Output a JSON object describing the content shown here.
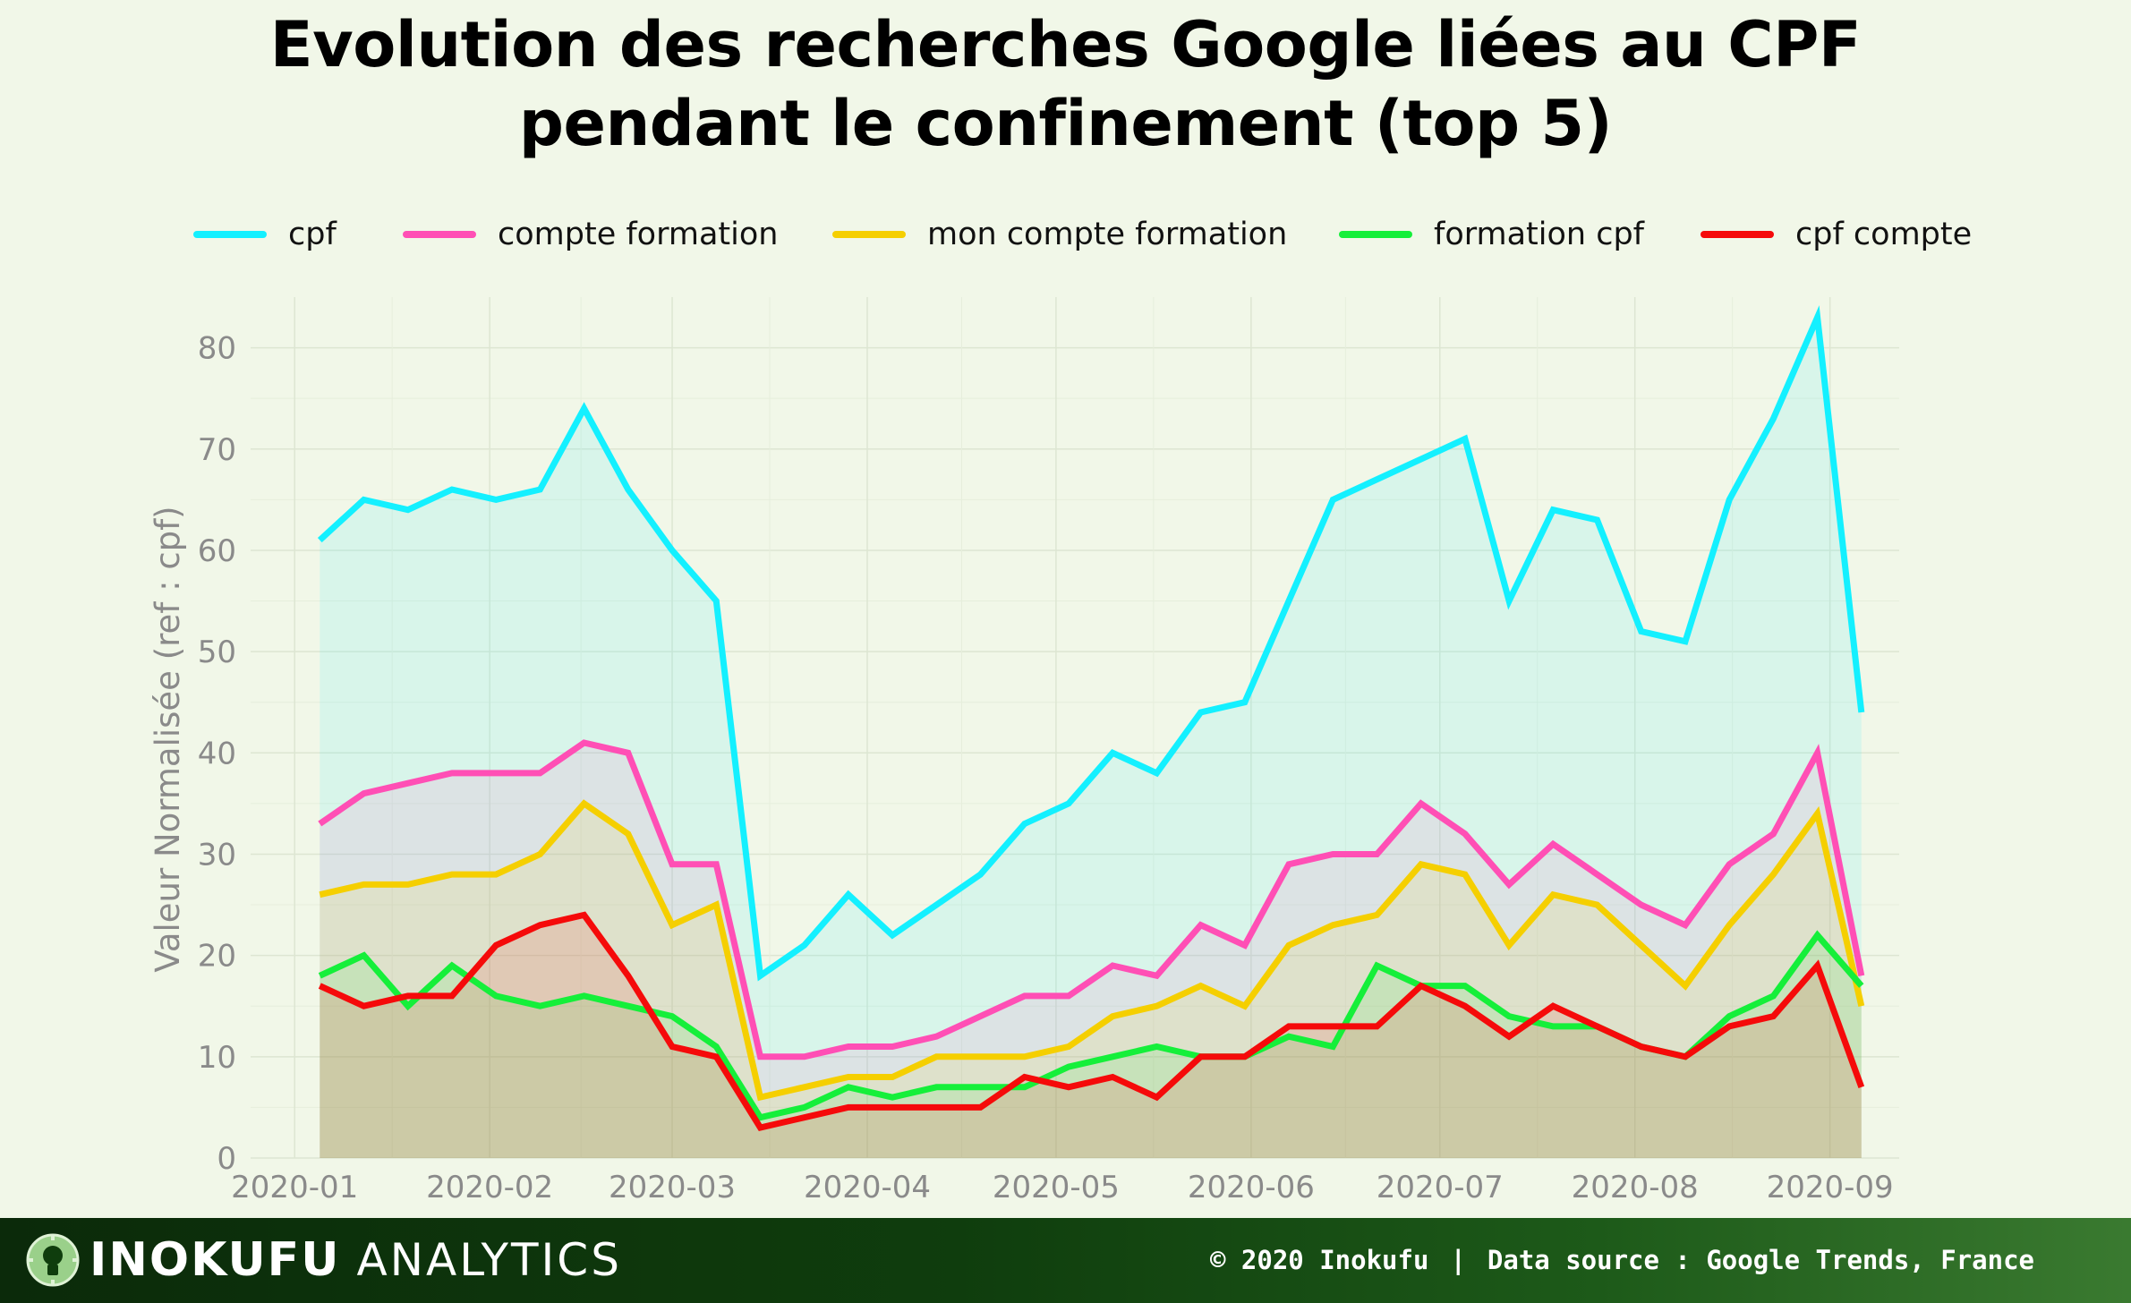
{
  "title": {
    "line1": "Evolution des recherches Google liées au CPF",
    "line2": "pendant le confinement (top 5)"
  },
  "footer": {
    "brand": "INOKUFU",
    "brand_sub": "ANALYTICS",
    "copyright": "© 2020 Inokufu",
    "separator": "|",
    "source": "Data source : Google Trends, France"
  },
  "colors": {
    "background": "#f1f7e8",
    "cpf": "#14f0ff",
    "compte formation": "#ff4fb5",
    "mon compte formation": "#f5cf00",
    "formation cpf": "#15ef3a",
    "cpf compte": "#f50a0a"
  },
  "chart_data": {
    "type": "area",
    "title": "Evolution des recherches Google liées au CPF pendant le confinement (top 5)",
    "ylabel": "Valeur Normalisée  (ref : cpf)",
    "xlabel": "",
    "ylim": [
      0,
      85
    ],
    "yticks": [
      0,
      10,
      20,
      30,
      40,
      50,
      60,
      70,
      80
    ],
    "xlim": [
      "2019-12-25",
      "2020-09-12"
    ],
    "xticks": [
      {
        "date": "2020-01-01",
        "label": "2020-01"
      },
      {
        "date": "2020-02-01",
        "label": "2020-02"
      },
      {
        "date": "2020-03-01",
        "label": "2020-03"
      },
      {
        "date": "2020-04-01",
        "label": "2020-04"
      },
      {
        "date": "2020-05-01",
        "label": "2020-05"
      },
      {
        "date": "2020-06-01",
        "label": "2020-06"
      },
      {
        "date": "2020-07-01",
        "label": "2020-07"
      },
      {
        "date": "2020-08-01",
        "label": "2020-08"
      },
      {
        "date": "2020-09-01",
        "label": "2020-09"
      }
    ],
    "grid": true,
    "legend_position": "top",
    "x": [
      "2020-01-05",
      "2020-01-12",
      "2020-01-19",
      "2020-01-26",
      "2020-02-02",
      "2020-02-09",
      "2020-02-16",
      "2020-02-23",
      "2020-03-01",
      "2020-03-08",
      "2020-03-15",
      "2020-03-22",
      "2020-03-29",
      "2020-04-05",
      "2020-04-12",
      "2020-04-19",
      "2020-04-26",
      "2020-05-03",
      "2020-05-10",
      "2020-05-17",
      "2020-05-24",
      "2020-05-31",
      "2020-06-07",
      "2020-06-14",
      "2020-06-21",
      "2020-06-28",
      "2020-07-05",
      "2020-07-12",
      "2020-07-19",
      "2020-07-26",
      "2020-08-02",
      "2020-08-09",
      "2020-08-16",
      "2020-08-23",
      "2020-08-30",
      "2020-09-06"
    ],
    "series": [
      {
        "name": "cpf",
        "values": [
          61,
          65,
          64,
          66,
          65,
          66,
          74,
          66,
          60,
          55,
          18,
          21,
          26,
          22,
          25,
          28,
          33,
          35,
          40,
          38,
          44,
          45,
          55,
          65,
          67,
          69,
          71,
          55,
          64,
          63,
          52,
          51,
          65,
          73,
          83,
          44
        ]
      },
      {
        "name": "compte formation",
        "values": [
          33,
          36,
          37,
          38,
          38,
          38,
          41,
          40,
          29,
          29,
          10,
          10,
          11,
          11,
          12,
          14,
          16,
          16,
          19,
          18,
          23,
          21,
          29,
          30,
          30,
          35,
          32,
          27,
          31,
          28,
          25,
          23,
          29,
          32,
          40,
          18
        ]
      },
      {
        "name": "mon compte formation",
        "values": [
          26,
          27,
          27,
          28,
          28,
          30,
          35,
          32,
          23,
          25,
          6,
          7,
          8,
          8,
          10,
          10,
          10,
          11,
          14,
          15,
          17,
          15,
          21,
          23,
          24,
          29,
          28,
          21,
          26,
          25,
          21,
          17,
          23,
          28,
          34,
          15
        ]
      },
      {
        "name": "formation cpf",
        "values": [
          18,
          20,
          15,
          19,
          16,
          15,
          16,
          15,
          14,
          11,
          4,
          5,
          7,
          6,
          7,
          7,
          7,
          9,
          10,
          11,
          10,
          10,
          12,
          11,
          19,
          17,
          17,
          14,
          13,
          13,
          11,
          10,
          14,
          16,
          22,
          17
        ]
      },
      {
        "name": "cpf compte",
        "values": [
          17,
          15,
          16,
          16,
          21,
          23,
          24,
          18,
          11,
          10,
          3,
          4,
          5,
          5,
          5,
          5,
          8,
          7,
          8,
          6,
          10,
          10,
          13,
          13,
          13,
          17,
          15,
          12,
          15,
          13,
          11,
          10,
          13,
          14,
          19,
          7
        ]
      }
    ]
  }
}
